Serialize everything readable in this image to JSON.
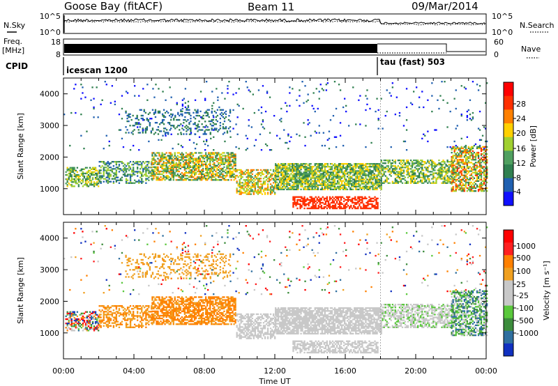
{
  "header": {
    "station": "Goose Bay (fitACF)",
    "beam": "Beam 11",
    "date": "09/Mar/2014"
  },
  "noise_panel": {
    "left_label": "N.Sky",
    "left_ticks": [
      "10^5",
      "10^0"
    ],
    "right_ticks": [
      "10^5",
      "10^0"
    ],
    "right_label": "N.Search"
  },
  "freq_panel": {
    "left_label_line1": "Freq.",
    "left_label_line2": "[MHz]",
    "left_ticks": [
      "18",
      "8"
    ],
    "right_ticks": [
      "60",
      "0"
    ],
    "right_label": "Nave"
  },
  "cpid_panel": {
    "label": "CPID",
    "mode1": "icescan 1200",
    "mode2": "tau (fast) 503"
  },
  "chart_data": [
    {
      "type": "heatmap",
      "title": "",
      "xlabel": "",
      "ylabel": "Slant Range [km]",
      "x_range": [
        "00:00",
        "24:00"
      ],
      "ylim": [
        180,
        4500
      ],
      "y_ticks": [
        "1000",
        "2000",
        "3000",
        "4000"
      ],
      "colorbar": {
        "label": "Power [dB]",
        "ticks": [
          "4",
          "8",
          "12",
          "16",
          "20",
          "24",
          "28"
        ],
        "colors": [
          "#1010ff",
          "#2060b0",
          "#308050",
          "#50a060",
          "#a0d030",
          "#ffd000",
          "#ff8000",
          "#ff3000",
          "#ff0000"
        ]
      }
    },
    {
      "type": "heatmap",
      "title": "",
      "xlabel": "Time UT",
      "ylabel": "Slant Range [km]",
      "x_range": [
        "00:00",
        "24:00"
      ],
      "ylim": [
        180,
        4500
      ],
      "y_ticks": [
        "1000",
        "2000",
        "3000",
        "4000"
      ],
      "x_ticks": [
        "00:00",
        "04:00",
        "08:00",
        "12:00",
        "16:00",
        "20:00",
        "00:00"
      ],
      "colorbar": {
        "label": "Velocity [m s⁻¹]",
        "ticks": [
          "1000",
          "500",
          "100",
          "25",
          "-25",
          "-100",
          "-500",
          "-1000"
        ],
        "colors": [
          "#1030c0",
          "#2f6f9f",
          "#3c8c3c",
          "#5ac83c",
          "#c8c8c8",
          "#c8c8c8",
          "#f0a020",
          "#ff8000",
          "#ff2020",
          "#ff0000"
        ]
      }
    }
  ]
}
